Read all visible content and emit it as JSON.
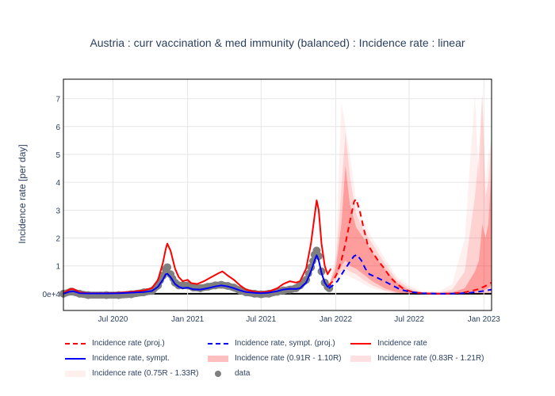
{
  "title": "Austria : curr vaccination & med immunity (balanced) : Incidence rate : linear",
  "chart_data": {
    "type": "line",
    "title": "Austria : curr vaccination & med immunity (balanced) : Incidence rate : linear",
    "ylabel": "Incidence rate [per day]",
    "xlabel": "",
    "x_ticks": [
      "Jul 2020",
      "Jan 2021",
      "Jul 2021",
      "Jan 2022",
      "Jul 2022",
      "Jan 2023"
    ],
    "x_tick_values": [
      "2020-07-01",
      "2021-01-01",
      "2021-07-01",
      "2022-01-01",
      "2022-07-01",
      "2023-01-01"
    ],
    "x_range": [
      "2020-03-01",
      "2023-01-20"
    ],
    "y_ticks": [
      "0e+4",
      "1",
      "2",
      "3",
      "4",
      "5",
      "6",
      "7"
    ],
    "ylim": [
      -0.6,
      7.7
    ],
    "grid": true,
    "legend_position": "bottom",
    "series": [
      {
        "name": "Incidence rate (proj.)",
        "color": "#ff0000",
        "dash": "dashed",
        "points": [
          [
            "2021-12-15",
            0.3
          ],
          [
            "2021-12-25",
            0.45
          ],
          [
            "2022-01-05",
            0.75
          ],
          [
            "2022-01-15",
            1.2
          ],
          [
            "2022-01-25",
            1.8
          ],
          [
            "2022-02-05",
            2.6
          ],
          [
            "2022-02-15",
            3.3
          ],
          [
            "2022-02-20",
            3.4
          ],
          [
            "2022-03-01",
            3.0
          ],
          [
            "2022-03-10",
            2.4
          ],
          [
            "2022-03-20",
            1.8
          ],
          [
            "2022-04-01",
            1.5
          ],
          [
            "2022-04-15",
            1.2
          ],
          [
            "2022-05-01",
            0.9
          ],
          [
            "2022-05-15",
            0.6
          ],
          [
            "2022-06-01",
            0.35
          ],
          [
            "2022-06-15",
            0.2
          ],
          [
            "2022-07-01",
            0.1
          ],
          [
            "2022-07-20",
            0.04
          ],
          [
            "2022-08-15",
            0.01
          ],
          [
            "2022-09-15",
            0.0
          ],
          [
            "2022-10-15",
            0.01
          ],
          [
            "2022-11-15",
            0.05
          ],
          [
            "2022-12-15",
            0.15
          ],
          [
            "2023-01-01",
            0.25
          ],
          [
            "2023-01-20",
            0.4
          ]
        ]
      },
      {
        "name": "Incidence rate, sympt. (proj.)",
        "color": "#0000ff",
        "dash": "dashed",
        "points": [
          [
            "2021-12-15",
            0.2
          ],
          [
            "2021-12-25",
            0.3
          ],
          [
            "2022-01-05",
            0.45
          ],
          [
            "2022-01-20",
            0.8
          ],
          [
            "2022-02-05",
            1.15
          ],
          [
            "2022-02-15",
            1.35
          ],
          [
            "2022-02-22",
            1.4
          ],
          [
            "2022-03-05",
            1.2
          ],
          [
            "2022-03-15",
            0.9
          ],
          [
            "2022-03-25",
            0.7
          ],
          [
            "2022-04-10",
            0.6
          ],
          [
            "2022-05-01",
            0.45
          ],
          [
            "2022-05-20",
            0.3
          ],
          [
            "2022-06-10",
            0.15
          ],
          [
            "2022-07-01",
            0.07
          ],
          [
            "2022-08-01",
            0.02
          ],
          [
            "2022-09-15",
            0.0
          ],
          [
            "2022-11-01",
            0.01
          ],
          [
            "2022-12-01",
            0.04
          ],
          [
            "2023-01-01",
            0.1
          ],
          [
            "2023-01-20",
            0.15
          ]
        ]
      },
      {
        "name": "Incidence rate",
        "color": "#ff0000",
        "dash": "solid",
        "points": [
          [
            "2020-03-01",
            0.02
          ],
          [
            "2020-03-15",
            0.15
          ],
          [
            "2020-03-25",
            0.18
          ],
          [
            "2020-04-10",
            0.05
          ],
          [
            "2020-05-01",
            0.02
          ],
          [
            "2020-06-15",
            0.02
          ],
          [
            "2020-07-15",
            0.03
          ],
          [
            "2020-08-15",
            0.07
          ],
          [
            "2020-09-15",
            0.12
          ],
          [
            "2020-10-05",
            0.2
          ],
          [
            "2020-10-20",
            0.5
          ],
          [
            "2020-11-01",
            1.1
          ],
          [
            "2020-11-08",
            1.6
          ],
          [
            "2020-11-12",
            1.8
          ],
          [
            "2020-11-20",
            1.55
          ],
          [
            "2020-12-01",
            0.9
          ],
          [
            "2020-12-10",
            0.6
          ],
          [
            "2020-12-20",
            0.45
          ],
          [
            "2021-01-01",
            0.5
          ],
          [
            "2021-01-10",
            0.38
          ],
          [
            "2021-01-25",
            0.35
          ],
          [
            "2021-02-10",
            0.45
          ],
          [
            "2021-03-01",
            0.6
          ],
          [
            "2021-03-20",
            0.75
          ],
          [
            "2021-03-28",
            0.8
          ],
          [
            "2021-04-10",
            0.65
          ],
          [
            "2021-04-25",
            0.5
          ],
          [
            "2021-05-10",
            0.3
          ],
          [
            "2021-05-25",
            0.15
          ],
          [
            "2021-06-15",
            0.07
          ],
          [
            "2021-07-01",
            0.05
          ],
          [
            "2021-07-20",
            0.08
          ],
          [
            "2021-08-10",
            0.2
          ],
          [
            "2021-08-25",
            0.35
          ],
          [
            "2021-09-10",
            0.45
          ],
          [
            "2021-09-25",
            0.4
          ],
          [
            "2021-10-05",
            0.45
          ],
          [
            "2021-10-20",
            0.9
          ],
          [
            "2021-11-01",
            1.8
          ],
          [
            "2021-11-10",
            2.8
          ],
          [
            "2021-11-15",
            3.35
          ],
          [
            "2021-11-20",
            3.0
          ],
          [
            "2021-11-27",
            1.8
          ],
          [
            "2021-12-05",
            1.0
          ],
          [
            "2021-12-12",
            0.7
          ],
          [
            "2021-12-20",
            0.9
          ]
        ]
      },
      {
        "name": "Incidence rate, sympt.",
        "color": "#0000ff",
        "dash": "solid",
        "points": [
          [
            "2020-03-01",
            0.0
          ],
          [
            "2020-03-15",
            0.07
          ],
          [
            "2020-03-25",
            0.09
          ],
          [
            "2020-04-10",
            0.02
          ],
          [
            "2020-05-01",
            0.01
          ],
          [
            "2020-06-15",
            0.01
          ],
          [
            "2020-07-15",
            0.02
          ],
          [
            "2020-08-15",
            0.04
          ],
          [
            "2020-09-15",
            0.06
          ],
          [
            "2020-10-05",
            0.1
          ],
          [
            "2020-10-20",
            0.25
          ],
          [
            "2020-11-01",
            0.5
          ],
          [
            "2020-11-08",
            0.7
          ],
          [
            "2020-11-12",
            0.72
          ],
          [
            "2020-11-20",
            0.6
          ],
          [
            "2020-12-01",
            0.35
          ],
          [
            "2020-12-10",
            0.25
          ],
          [
            "2020-12-20",
            0.2
          ],
          [
            "2021-01-01",
            0.22
          ],
          [
            "2021-01-15",
            0.16
          ],
          [
            "2021-02-01",
            0.15
          ],
          [
            "2021-02-20",
            0.2
          ],
          [
            "2021-03-10",
            0.26
          ],
          [
            "2021-03-25",
            0.3
          ],
          [
            "2021-04-10",
            0.26
          ],
          [
            "2021-04-25",
            0.2
          ],
          [
            "2021-05-10",
            0.12
          ],
          [
            "2021-05-25",
            0.06
          ],
          [
            "2021-06-15",
            0.03
          ],
          [
            "2021-07-01",
            0.02
          ],
          [
            "2021-07-20",
            0.04
          ],
          [
            "2021-08-10",
            0.09
          ],
          [
            "2021-08-25",
            0.15
          ],
          [
            "2021-09-10",
            0.18
          ],
          [
            "2021-09-25",
            0.17
          ],
          [
            "2021-10-05",
            0.2
          ],
          [
            "2021-10-20",
            0.4
          ],
          [
            "2021-11-01",
            0.8
          ],
          [
            "2021-11-10",
            1.2
          ],
          [
            "2021-11-15",
            1.38
          ],
          [
            "2021-11-20",
            1.2
          ],
          [
            "2021-11-27",
            0.75
          ],
          [
            "2021-12-05",
            0.4
          ],
          [
            "2021-12-12",
            0.25
          ],
          [
            "2021-12-20",
            0.35
          ]
        ]
      },
      {
        "name": "data",
        "color": "#7f7f7f",
        "type": "markers",
        "points": [
          [
            "2020-03-01",
            0.0
          ],
          [
            "2020-03-20",
            0.08
          ],
          [
            "2020-04-10",
            0.0
          ],
          [
            "2020-05-01",
            -0.05
          ],
          [
            "2020-06-15",
            -0.05
          ],
          [
            "2020-07-15",
            -0.05
          ],
          [
            "2020-08-15",
            -0.02
          ],
          [
            "2020-09-15",
            0.05
          ],
          [
            "2020-10-05",
            0.1
          ],
          [
            "2020-10-20",
            0.3
          ],
          [
            "2020-11-01",
            0.65
          ],
          [
            "2020-11-08",
            0.88
          ],
          [
            "2020-11-12",
            0.95
          ],
          [
            "2020-11-20",
            0.7
          ],
          [
            "2020-12-01",
            0.4
          ],
          [
            "2020-12-10",
            0.3
          ],
          [
            "2020-12-20",
            0.3
          ],
          [
            "2021-01-01",
            0.3
          ],
          [
            "2021-01-15",
            0.22
          ],
          [
            "2021-02-01",
            0.2
          ],
          [
            "2021-02-20",
            0.25
          ],
          [
            "2021-03-10",
            0.3
          ],
          [
            "2021-03-25",
            0.32
          ],
          [
            "2021-04-10",
            0.28
          ],
          [
            "2021-04-25",
            0.22
          ],
          [
            "2021-05-10",
            0.12
          ],
          [
            "2021-05-25",
            0.05
          ],
          [
            "2021-06-15",
            0.0
          ],
          [
            "2021-07-01",
            -0.02
          ],
          [
            "2021-07-20",
            0.0
          ],
          [
            "2021-08-10",
            0.07
          ],
          [
            "2021-08-25",
            0.12
          ],
          [
            "2021-09-10",
            0.15
          ],
          [
            "2021-09-25",
            0.2
          ],
          [
            "2021-10-05",
            0.3
          ],
          [
            "2021-10-20",
            0.5
          ],
          [
            "2021-11-01",
            0.95
          ],
          [
            "2021-11-10",
            1.4
          ],
          [
            "2021-11-15",
            1.55
          ],
          [
            "2021-11-20",
            1.35
          ],
          [
            "2021-11-27",
            0.8
          ],
          [
            "2021-12-05",
            0.4
          ],
          [
            "2021-12-12",
            0.25
          ],
          [
            "2021-12-16",
            0.2
          ]
        ]
      }
    ],
    "bands": [
      {
        "name": "Incidence rate (0.91R - 1.10R)",
        "color": "#ff0000",
        "opacity": 0.25
      },
      {
        "name": "Incidence rate (0.83R - 1.21R)",
        "color": "#ff0000",
        "opacity": 0.12
      },
      {
        "name": "Incidence rate (0.75R - 1.33R)",
        "color": "#ff0000",
        "opacity": 0.06
      }
    ],
    "band_shape": [
      [
        "2021-12-15",
        0.3,
        0.3,
        0.3,
        0.3,
        0.3,
        0.3
      ],
      [
        "2022-01-01",
        0.6,
        0.9,
        0.5,
        1.1,
        0.4,
        1.4
      ],
      [
        "2022-01-15",
        1.0,
        2.5,
        0.8,
        3.8,
        0.6,
        6.9
      ],
      [
        "2022-01-25",
        1.2,
        4.6,
        0.9,
        5.8,
        0.7,
        6.0
      ],
      [
        "2022-02-05",
        1.0,
        3.2,
        0.8,
        4.2,
        0.6,
        5.0
      ],
      [
        "2022-02-20",
        0.9,
        2.4,
        0.7,
        2.9,
        0.5,
        3.3
      ],
      [
        "2022-03-10",
        0.7,
        2.0,
        0.5,
        2.3,
        0.35,
        2.6
      ],
      [
        "2022-04-01",
        0.45,
        1.5,
        0.3,
        1.8,
        0.2,
        2.0
      ],
      [
        "2022-05-01",
        0.2,
        0.9,
        0.12,
        1.1,
        0.08,
        1.3
      ],
      [
        "2022-06-01",
        0.05,
        0.4,
        0.03,
        0.5,
        0.02,
        0.6
      ],
      [
        "2022-07-01",
        0.01,
        0.12,
        0.0,
        0.2,
        0.0,
        0.3
      ],
      [
        "2022-08-01",
        0.0,
        0.03,
        0.0,
        0.06,
        0.0,
        0.1
      ],
      [
        "2022-09-15",
        0.0,
        0.02,
        0.0,
        0.05,
        0.0,
        0.1
      ],
      [
        "2022-10-15",
        0.0,
        0.05,
        0.0,
        0.15,
        0.0,
        0.35
      ],
      [
        "2022-11-15",
        0.02,
        0.2,
        0.0,
        0.8,
        0.0,
        2.0
      ],
      [
        "2022-12-10",
        0.05,
        0.8,
        0.0,
        3.5,
        0.0,
        7.2
      ],
      [
        "2022-12-20",
        0.08,
        1.2,
        0.0,
        5.0,
        0.0,
        4.0
      ],
      [
        "2022-12-28",
        0.12,
        2.5,
        0.0,
        7.2,
        0.0,
        7.2
      ],
      [
        "2023-01-05",
        0.15,
        2.0,
        0.0,
        3.5,
        0.0,
        4.0
      ],
      [
        "2023-01-12",
        0.2,
        2.5,
        0.0,
        4.0,
        0.0,
        5.0
      ],
      [
        "2023-01-20",
        0.3,
        4.5,
        0.05,
        5.5,
        0.0,
        5.6
      ]
    ]
  }
}
